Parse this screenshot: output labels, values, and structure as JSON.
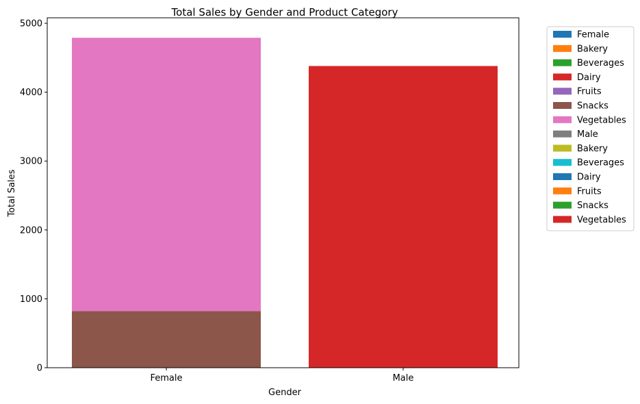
{
  "chart_data": {
    "type": "bar",
    "stacked": true,
    "title": "Total Sales by Gender and Product Category",
    "xlabel": "Gender",
    "ylabel": "Total Sales",
    "categories": [
      "Female",
      "Male"
    ],
    "ylim": [
      0,
      5000
    ],
    "yticks": [
      0,
      1000,
      2000,
      3000,
      4000,
      5000
    ],
    "grid": false,
    "legend_placement": "outside-upper-right",
    "series": [
      {
        "name": "Female",
        "color": "#1f77b4",
        "values": [
          0,
          0
        ]
      },
      {
        "name": "Bakery",
        "color": "#ff7f0e",
        "values": [
          0,
          0
        ]
      },
      {
        "name": "Beverages",
        "color": "#2ca02c",
        "values": [
          0,
          0
        ]
      },
      {
        "name": "Dairy",
        "color": "#d62728",
        "values": [
          0,
          0
        ]
      },
      {
        "name": "Fruits",
        "color": "#9467bd",
        "values": [
          0,
          0
        ]
      },
      {
        "name": "Snacks",
        "color": "#8c564b",
        "values": [
          820,
          0
        ]
      },
      {
        "name": "Vegetables",
        "color": "#e377c2",
        "values": [
          3970,
          0
        ]
      },
      {
        "name": "Male",
        "color": "#7f7f7f",
        "values": [
          0,
          0
        ]
      },
      {
        "name": "Bakery",
        "color": "#bcbd22",
        "values": [
          0,
          0
        ]
      },
      {
        "name": "Beverages",
        "color": "#17becf",
        "values": [
          0,
          0
        ]
      },
      {
        "name": "Dairy",
        "color": "#1f77b4",
        "values": [
          0,
          0
        ]
      },
      {
        "name": "Fruits",
        "color": "#ff7f0e",
        "values": [
          0,
          0
        ]
      },
      {
        "name": "Snacks",
        "color": "#2ca02c",
        "values": [
          0,
          0
        ]
      },
      {
        "name": "Vegetables",
        "color": "#d62728",
        "values": [
          0,
          4380
        ]
      }
    ]
  }
}
